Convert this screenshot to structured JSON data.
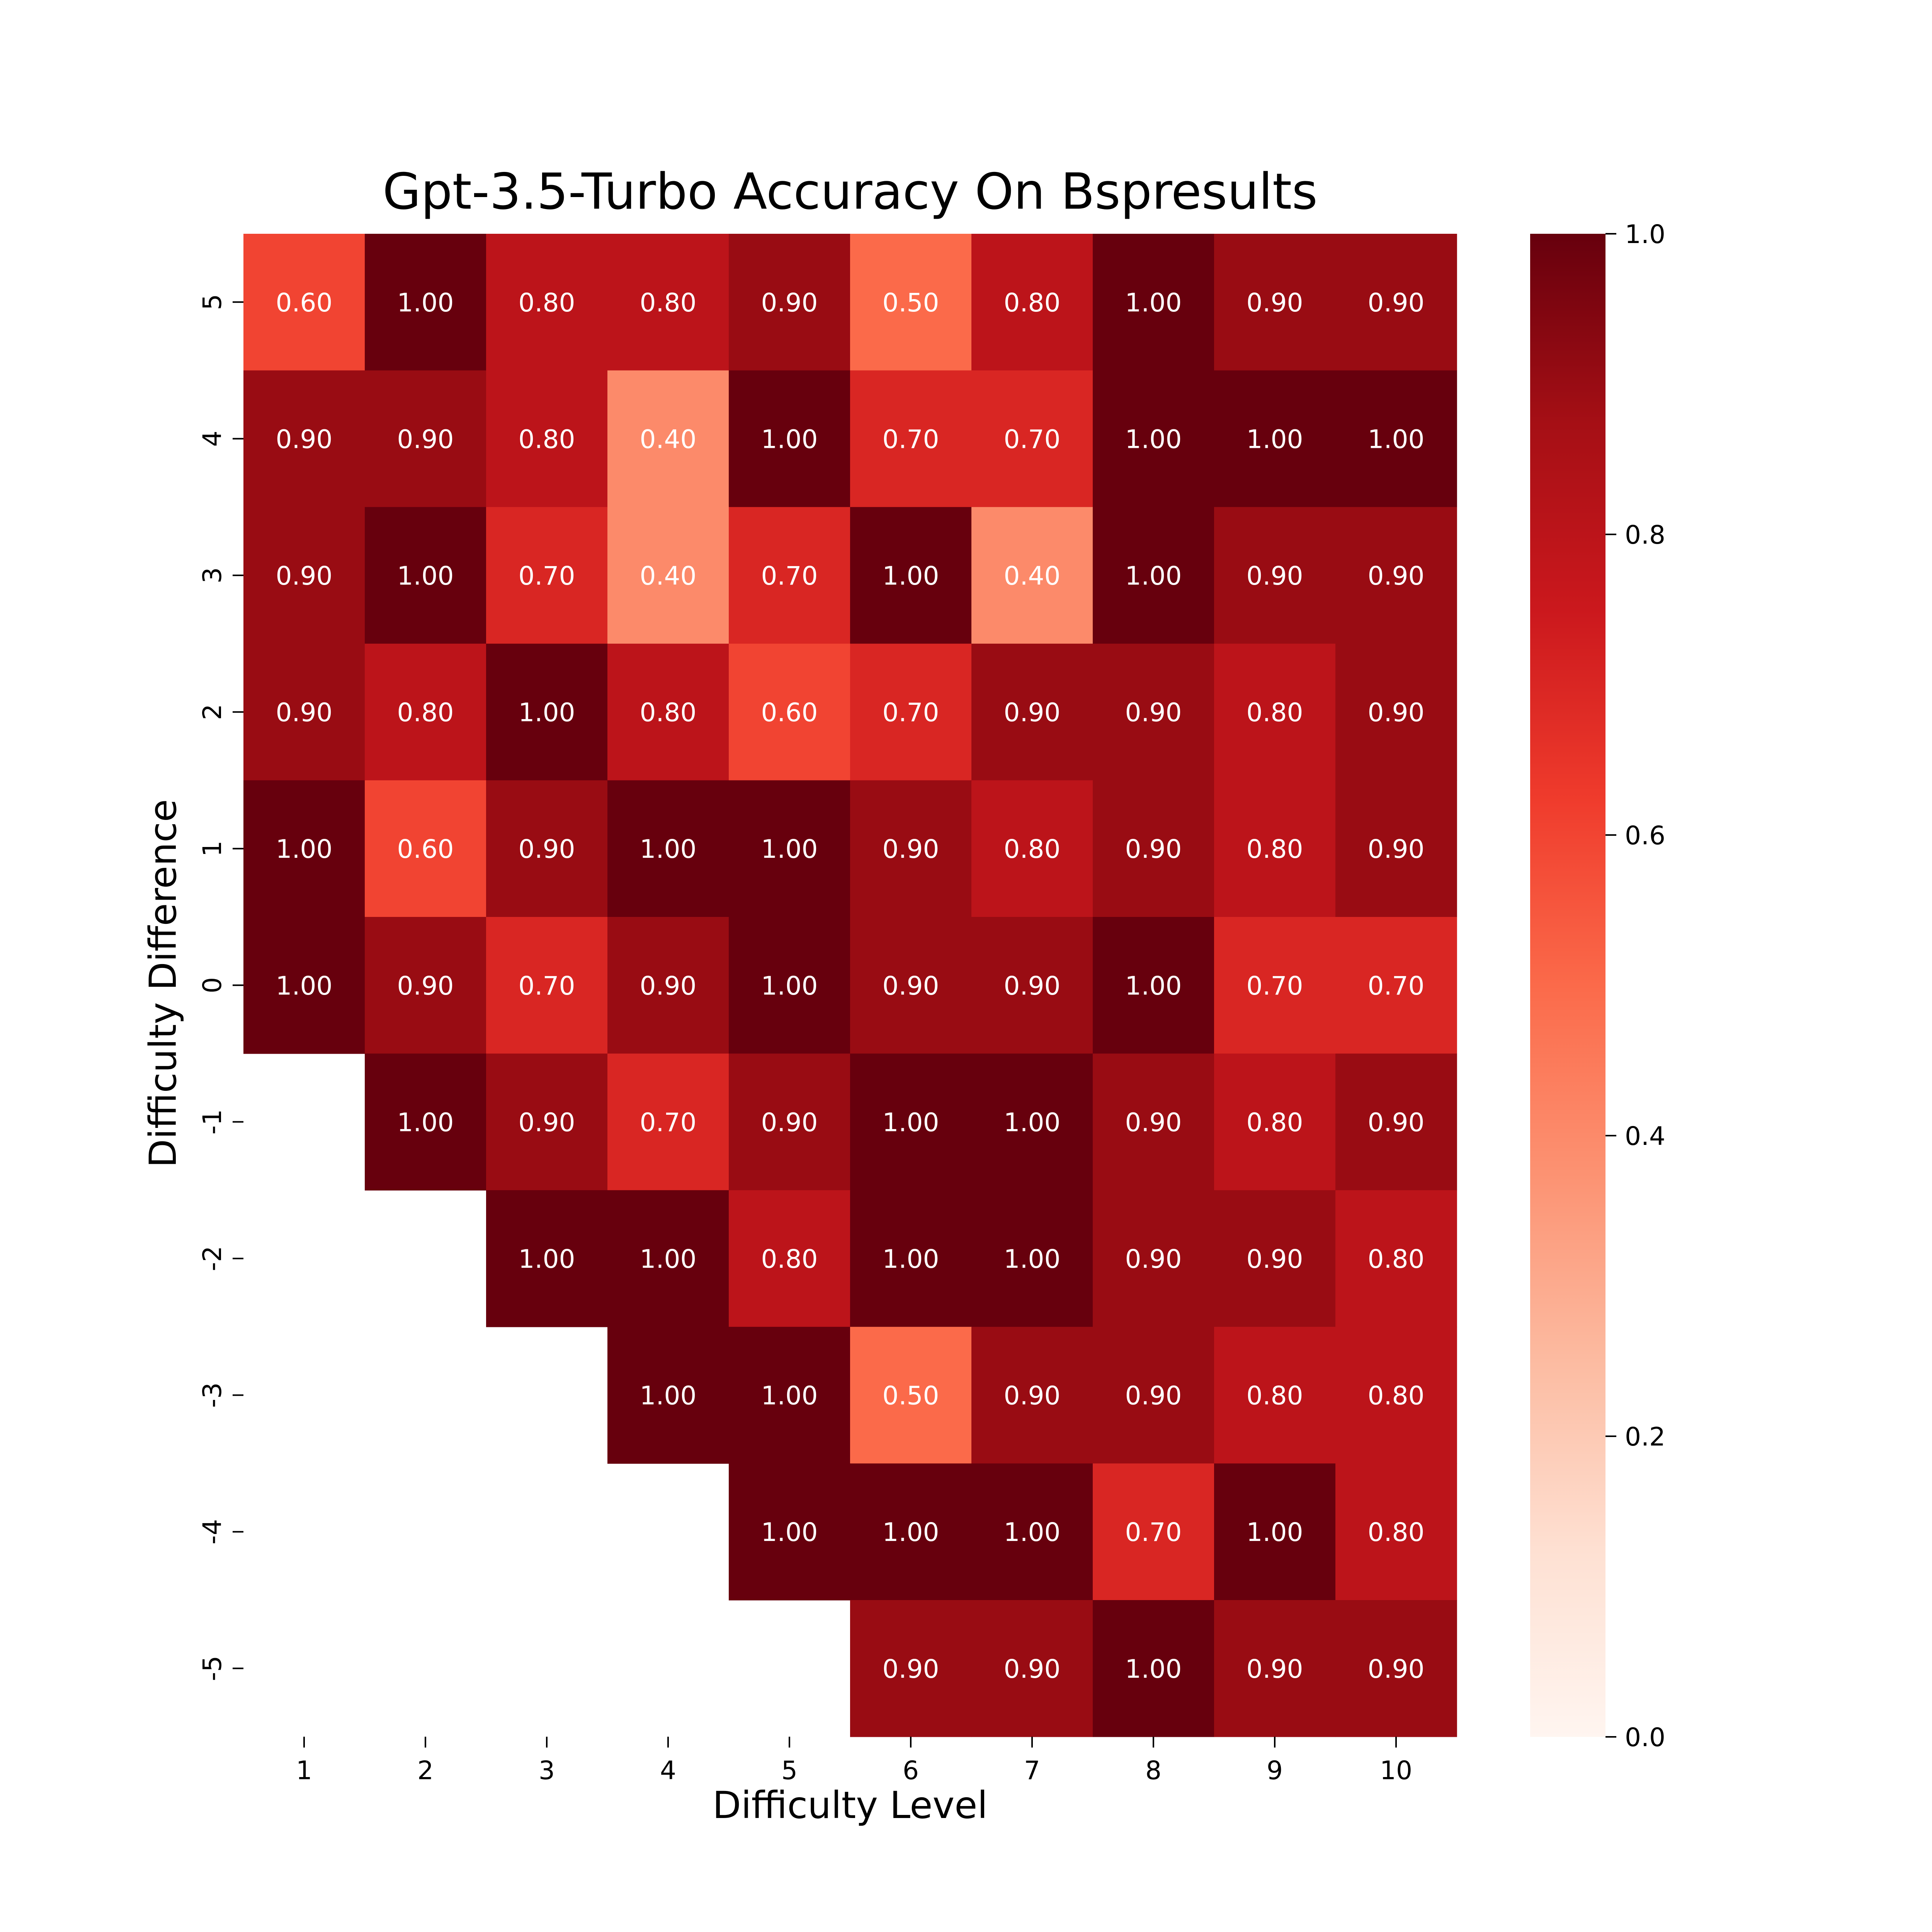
{
  "chart_data": {
    "type": "heatmap",
    "title": "Gpt-3.5-Turbo Accuracy On Bspresults",
    "xlabel": "Difficulty Level",
    "ylabel": "Difficulty Difference",
    "x": [
      "1",
      "2",
      "3",
      "4",
      "5",
      "6",
      "7",
      "8",
      "9",
      "10"
    ],
    "y": [
      "5",
      "4",
      "3",
      "2",
      "1",
      "0",
      "-1",
      "-2",
      "-3",
      "-4",
      "-5"
    ],
    "values": [
      [
        0.6,
        1.0,
        0.8,
        0.8,
        0.9,
        0.5,
        0.8,
        1.0,
        0.9,
        0.9
      ],
      [
        0.9,
        0.9,
        0.8,
        0.4,
        1.0,
        0.7,
        0.7,
        1.0,
        1.0,
        1.0
      ],
      [
        0.9,
        1.0,
        0.7,
        0.4,
        0.7,
        1.0,
        0.4,
        1.0,
        0.9,
        0.9
      ],
      [
        0.9,
        0.8,
        1.0,
        0.8,
        0.6,
        0.7,
        0.9,
        0.9,
        0.8,
        0.9
      ],
      [
        1.0,
        0.6,
        0.9,
        1.0,
        1.0,
        0.9,
        0.8,
        0.9,
        0.8,
        0.9
      ],
      [
        1.0,
        0.9,
        0.7,
        0.9,
        1.0,
        0.9,
        0.9,
        1.0,
        0.7,
        0.7
      ],
      [
        null,
        1.0,
        0.9,
        0.7,
        0.9,
        1.0,
        1.0,
        0.9,
        0.8,
        0.9
      ],
      [
        null,
        null,
        1.0,
        1.0,
        0.8,
        1.0,
        1.0,
        0.9,
        0.9,
        0.8
      ],
      [
        null,
        null,
        null,
        1.0,
        1.0,
        0.5,
        0.9,
        0.9,
        0.8,
        0.8
      ],
      [
        null,
        null,
        null,
        null,
        1.0,
        1.0,
        1.0,
        0.7,
        1.0,
        0.8
      ],
      [
        null,
        null,
        null,
        null,
        null,
        0.9,
        0.9,
        1.0,
        0.9,
        0.9
      ]
    ],
    "value_format": "0.00",
    "colormap": "Reds",
    "colorbar": {
      "range": [
        0.0,
        1.0
      ],
      "ticks": [
        "0.0",
        "0.2",
        "0.4",
        "0.6",
        "0.8",
        "1.0"
      ]
    },
    "text_color": "#ffffff",
    "tick_color": "#000000"
  }
}
